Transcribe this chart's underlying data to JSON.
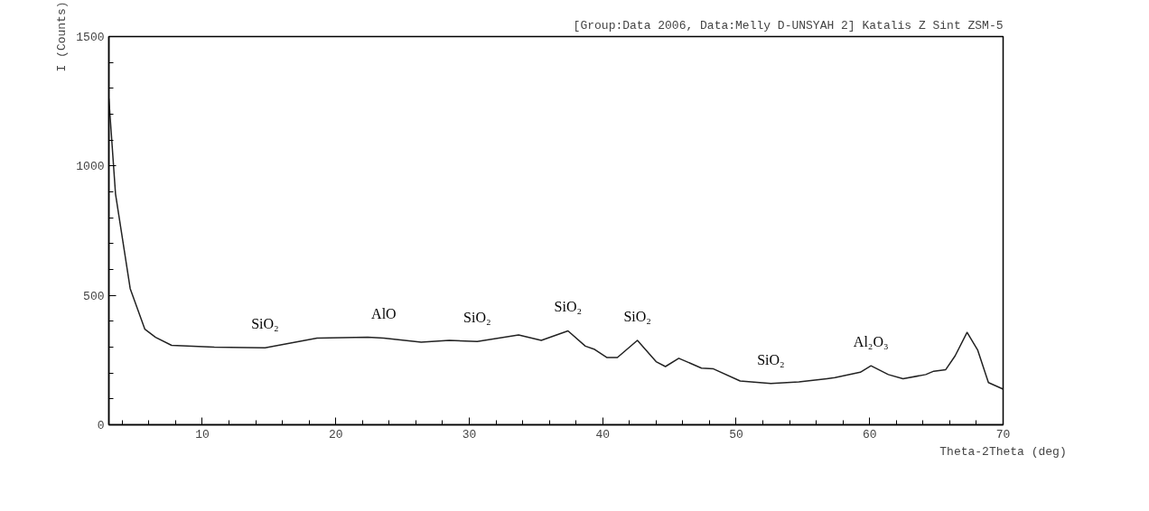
{
  "chart_data": {
    "type": "line",
    "title": "[Group:Data 2006, Data:Melly D-UNSYAH 2] Katalis Z Sint ZSM-5",
    "xlabel": "Theta-2Theta (deg)",
    "ylabel": "I (Counts)",
    "x": [
      3,
      3.5,
      4.6,
      5.7,
      6.5,
      7.7,
      10.9,
      14.7,
      18.6,
      22.4,
      23.6,
      26.4,
      28.5,
      30.6,
      33.7,
      35.4,
      37.4,
      38.7,
      39.4,
      40.3,
      41.1,
      42.6,
      44,
      44.7,
      45.7,
      47.4,
      48.3,
      50.3,
      52.6,
      54.7,
      56.8,
      57.4,
      59.3,
      60.1,
      61.4,
      62.5,
      64.2,
      64.8,
      65.7,
      66.4,
      67.3,
      68.1,
      68.9,
      70
    ],
    "series": [
      {
        "color": "#222222",
        "values": [
          1260,
          892,
          526,
          369,
          338,
          307,
          300,
          297,
          335,
          338,
          335,
          319,
          326,
          322,
          347,
          326,
          363,
          304,
          291,
          260,
          260,
          326,
          244,
          225,
          257,
          219,
          216,
          169,
          160,
          166,
          178,
          182,
          203,
          228,
          194,
          178,
          194,
          207,
          213,
          266,
          357,
          288,
          163,
          138
        ]
      }
    ],
    "xlim": [
      3,
      70
    ],
    "xticks": [
      10,
      20,
      30,
      40,
      50,
      60,
      70
    ],
    "ylim": [
      0,
      1500
    ],
    "yticks": [
      0,
      500,
      1000,
      1500
    ],
    "grid": false,
    "marker": "none",
    "line_style": "solid",
    "annotations": [
      {
        "text": "SiO₂",
        "x": 14.7,
        "y": 297
      },
      {
        "text": "AlO",
        "x": 23.6,
        "y": 335
      },
      {
        "text": "SiO₂",
        "x": 30.6,
        "y": 322
      },
      {
        "text": "SiO₂",
        "x": 37.4,
        "y": 363
      },
      {
        "text": "SiO₂",
        "x": 42.6,
        "y": 326
      },
      {
        "text": "SiO₂",
        "x": 52.6,
        "y": 160
      },
      {
        "text": "Al₂O₃",
        "x": 60.1,
        "y": 228
      }
    ]
  }
}
